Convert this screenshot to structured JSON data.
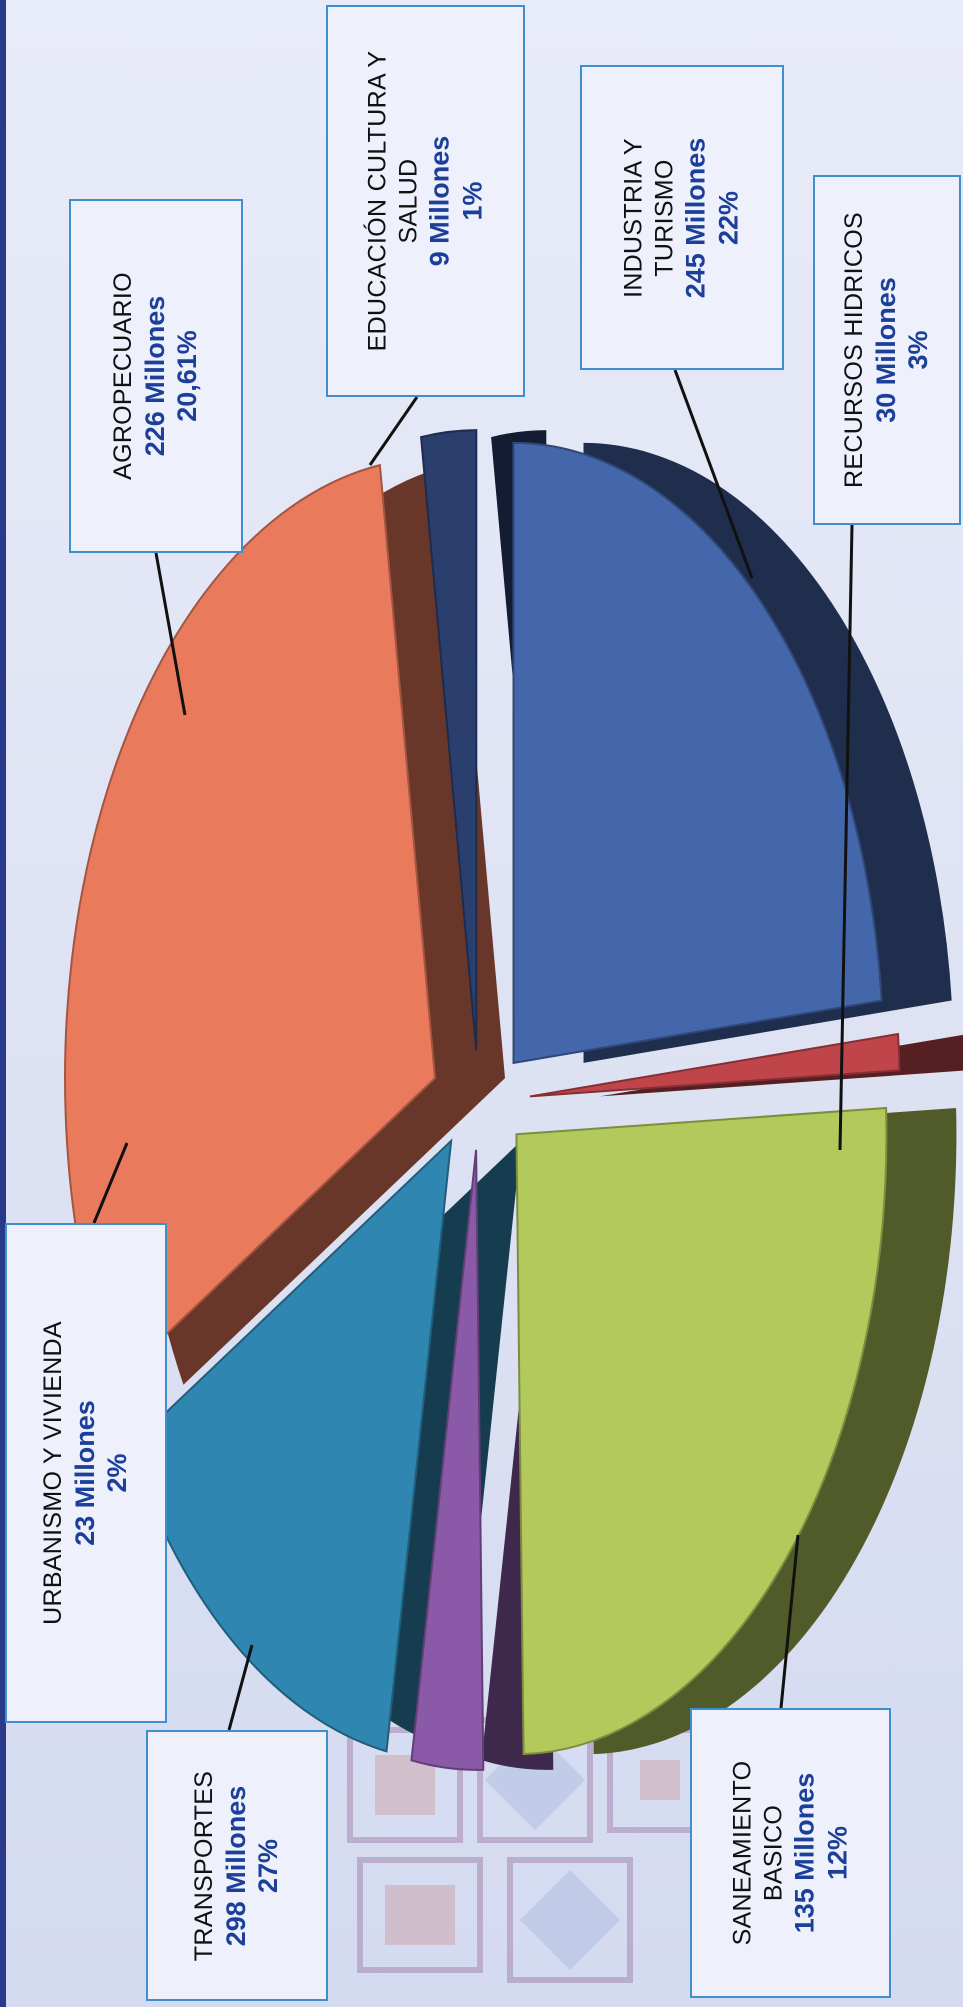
{
  "chart_data": {
    "type": "pie",
    "title": "",
    "unit_label": "Millones",
    "legend_placement": "callouts",
    "slices": [
      {
        "label": "AGROPECUARIO",
        "label_lines": [
          "AGROPECUARIO"
        ],
        "value": 226,
        "value_text": "226 Millones",
        "percent_text": "20,61%",
        "color": "#4466aa"
      },
      {
        "label": "EDUCACIÓN CULTURA Y SALUD",
        "label_lines": [
          "EDUCACIÓN CULTURA Y",
          "SALUD"
        ],
        "value": 9,
        "value_text": "9 Millones",
        "percent_text": "1%",
        "color": "#c0454b"
      },
      {
        "label": "INDUSTRIA Y TURISMO",
        "label_lines": [
          "INDUSTRIA Y",
          "TURISMO"
        ],
        "value": 245,
        "value_text": "245 Millones",
        "percent_text": "22%",
        "color": "#b3c95c"
      },
      {
        "label": "RECURSOS HIDRICOS",
        "label_lines": [
          "RECURSOS HIDRICOS"
        ],
        "value": 30,
        "value_text": "30 Millones",
        "percent_text": "3%",
        "color": "#8a5aa8"
      },
      {
        "label": "SANEAMIENTO BASICO",
        "label_lines": [
          "SANEAMIENTO",
          "BASICO"
        ],
        "value": 135,
        "value_text": "135 Millones",
        "percent_text": "12%",
        "color": "#2f86b0"
      },
      {
        "label": "TRANSPORTES",
        "label_lines": [
          "TRANSPORTES"
        ],
        "value": 298,
        "value_text": "298  Millones",
        "percent_text": "27%",
        "color": "#ea7a5c"
      },
      {
        "label": "URBANISMO Y VIVIENDA",
        "label_lines": [
          "URBANISMO Y VIVIENDA"
        ],
        "value": 23,
        "value_text": "23  Millones",
        "percent_text": "2%",
        "color": "#2a3f6e"
      }
    ]
  }
}
